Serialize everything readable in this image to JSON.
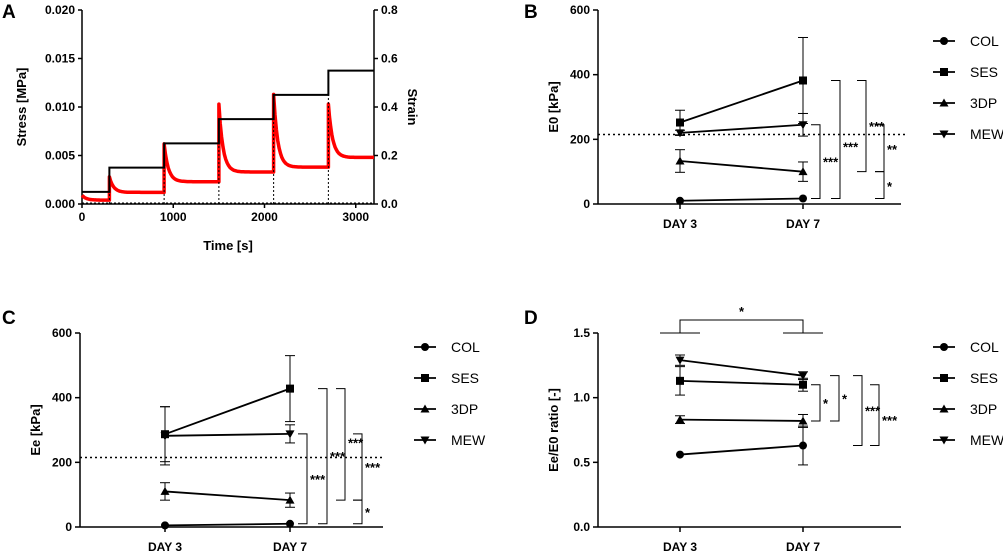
{
  "chart_data": [
    {
      "panel": "A",
      "type": "line",
      "xlabel": "Time [s]",
      "ylabel": "Stress [MPa]",
      "y2label": "Strain",
      "xlim": [
        0,
        3200
      ],
      "ylim": [
        0,
        0.02
      ],
      "y2lim": [
        0,
        0.8
      ],
      "xticks": [
        "0",
        "1000",
        "2000",
        "3000"
      ],
      "yticks": [
        "0.000",
        "0.005",
        "0.010",
        "0.015",
        "0.020"
      ],
      "y2ticks": [
        "0.0",
        "0.2",
        "0.4",
        "0.6",
        "0.8"
      ],
      "series": [
        {
          "name": "Strain",
          "color": "#000000",
          "steps": [
            {
              "t0": 0,
              "t1": 300,
              "strain": 0.05
            },
            {
              "t0": 300,
              "t1": 900,
              "strain": 0.15
            },
            {
              "t0": 900,
              "t1": 1500,
              "strain": 0.25
            },
            {
              "t0": 1500,
              "t1": 2100,
              "strain": 0.35
            },
            {
              "t0": 2100,
              "t1": 2700,
              "strain": 0.45
            },
            {
              "t0": 2700,
              "t1": 3200,
              "strain": 0.55
            }
          ]
        },
        {
          "name": "Stress",
          "color": "#ff0000",
          "relaxation_steps": [
            {
              "t0": 0,
              "t1": 300,
              "peak": 0.0009,
              "eq": 0.0004
            },
            {
              "t0": 300,
              "t1": 900,
              "peak": 0.0028,
              "eq": 0.0012
            },
            {
              "t0": 900,
              "t1": 1500,
              "peak": 0.0062,
              "eq": 0.0023
            },
            {
              "t0": 1500,
              "t1": 2100,
              "peak": 0.0103,
              "eq": 0.0033
            },
            {
              "t0": 2100,
              "t1": 2700,
              "peak": 0.0113,
              "eq": 0.0038
            },
            {
              "t0": 2700,
              "t1": 3200,
              "peak": 0.0103,
              "eq": 0.0048
            }
          ]
        }
      ]
    },
    {
      "panel": "B",
      "type": "line",
      "ylabel": "E0 [kPa]",
      "categories": [
        "DAY 3",
        "DAY 7"
      ],
      "ylim": [
        0,
        600
      ],
      "yticks": [
        "0",
        "200",
        "400",
        "600"
      ],
      "reference_line": 215,
      "series": [
        {
          "name": "COL",
          "marker": "circle",
          "values": [
            10,
            17
          ],
          "err": [
            0,
            0
          ]
        },
        {
          "name": "SES",
          "marker": "square",
          "values": [
            252,
            382
          ],
          "err": [
            38,
            133
          ]
        },
        {
          "name": "3DP",
          "marker": "triangle-up",
          "values": [
            133,
            100
          ],
          "err": [
            35,
            30
          ]
        },
        {
          "name": "MEW",
          "marker": "triangle-down",
          "values": [
            220,
            245
          ],
          "err": [
            8,
            35
          ]
        }
      ],
      "significance": [
        {
          "between": [
            "COL",
            "MEW"
          ],
          "label": "***"
        },
        {
          "between": [
            "COL",
            "SES"
          ],
          "label": "***"
        },
        {
          "between": [
            "3DP",
            "SES"
          ],
          "label": "***"
        },
        {
          "between": [
            "3DP",
            "MEW"
          ],
          "label": "**"
        },
        {
          "between": [
            "COL",
            "3DP"
          ],
          "label": "*"
        }
      ]
    },
    {
      "panel": "C",
      "type": "line",
      "ylabel": "Ee [kPa]",
      "categories": [
        "DAY 3",
        "DAY 7"
      ],
      "ylim": [
        0,
        600
      ],
      "yticks": [
        "0",
        "200",
        "400",
        "600"
      ],
      "reference_line": 215,
      "series": [
        {
          "name": "COL",
          "marker": "circle",
          "values": [
            5,
            10
          ],
          "err": [
            0,
            0
          ]
        },
        {
          "name": "SES",
          "marker": "square",
          "values": [
            287,
            428
          ],
          "err": [
            85,
            102
          ]
        },
        {
          "name": "3DP",
          "marker": "triangle-up",
          "values": [
            110,
            83
          ],
          "err": [
            27,
            22
          ]
        },
        {
          "name": "MEW",
          "marker": "triangle-down",
          "values": [
            282,
            288
          ],
          "err": [
            90,
            28
          ]
        }
      ],
      "significance": [
        {
          "between": [
            "COL",
            "MEW"
          ],
          "label": "***"
        },
        {
          "between": [
            "COL",
            "SES"
          ],
          "label": "***"
        },
        {
          "between": [
            "3DP",
            "SES"
          ],
          "label": "***"
        },
        {
          "between": [
            "3DP",
            "MEW"
          ],
          "label": "***"
        },
        {
          "between": [
            "COL",
            "3DP"
          ],
          "label": "*"
        }
      ]
    },
    {
      "panel": "D",
      "type": "line",
      "ylabel": "Ee/E0 ratio [-]",
      "categories": [
        "DAY 3",
        "DAY 7"
      ],
      "ylim": [
        0,
        1.5
      ],
      "yticks": [
        "0.0",
        "0.5",
        "1.0",
        "1.5"
      ],
      "series": [
        {
          "name": "COL",
          "marker": "circle",
          "values": [
            0.56,
            0.63
          ],
          "err": [
            0,
            0.15
          ]
        },
        {
          "name": "SES",
          "marker": "square",
          "values": [
            1.13,
            1.1
          ],
          "err": [
            0.11,
            0.05
          ]
        },
        {
          "name": "3DP",
          "marker": "triangle-up",
          "values": [
            0.83,
            0.82
          ],
          "err": [
            0.03,
            0.05
          ]
        },
        {
          "name": "MEW",
          "marker": "triangle-down",
          "values": [
            1.29,
            1.17
          ],
          "err": [
            0.04,
            0.03
          ]
        }
      ],
      "top_significance": {
        "between": [
          "DAY 3",
          "DAY 7"
        ],
        "label": "*"
      },
      "significance": [
        {
          "between": [
            "3DP",
            "SES"
          ],
          "label": "*"
        },
        {
          "between": [
            "3DP",
            "MEW"
          ],
          "label": "*"
        },
        {
          "between": [
            "COL",
            "MEW"
          ],
          "label": "***"
        },
        {
          "between": [
            "COL",
            "SES"
          ],
          "label": "***"
        }
      ]
    }
  ]
}
